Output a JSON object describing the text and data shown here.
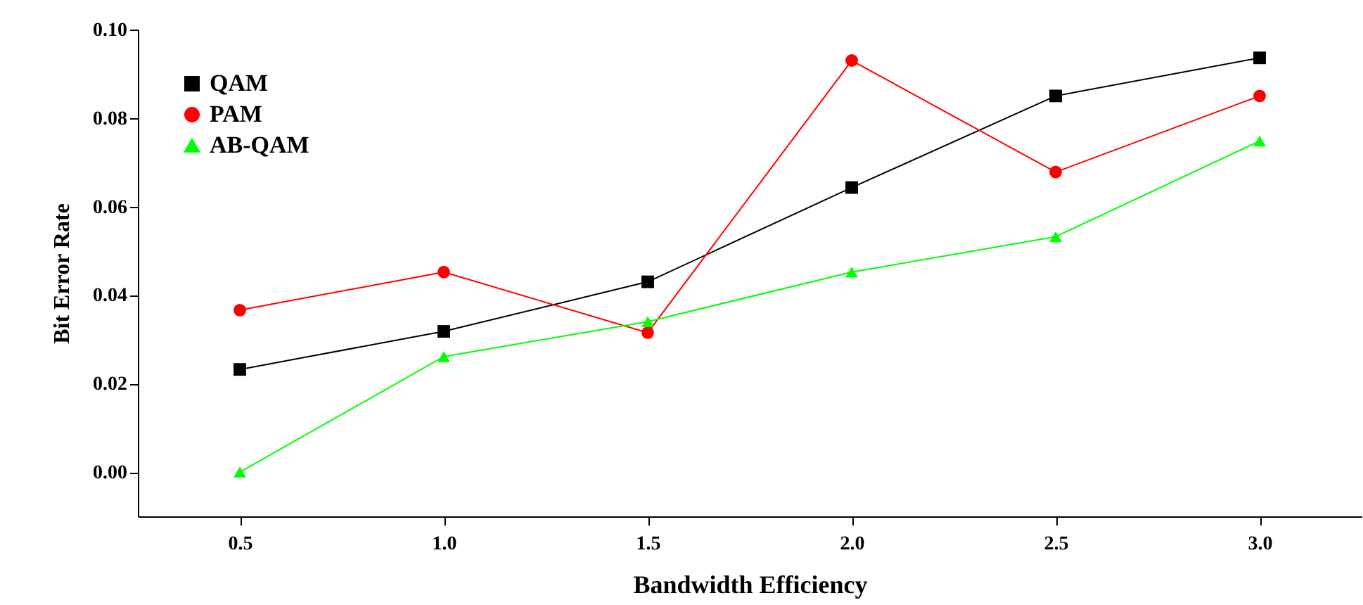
{
  "chart_data": {
    "type": "line",
    "xlabel": "Bandwidth Efficiency",
    "ylabel": "Bit Error Rate",
    "x": [
      0.5,
      1.0,
      1.5,
      2.0,
      2.5,
      3.0
    ],
    "xlim": [
      0.25,
      3.25
    ],
    "xticks": [
      {
        "value": 0.5,
        "label": "0.5"
      },
      {
        "value": 1.0,
        "label": "1.0"
      },
      {
        "value": 1.5,
        "label": "1.5"
      },
      {
        "value": 2.0,
        "label": "2.0"
      },
      {
        "value": 2.5,
        "label": "2.5"
      },
      {
        "value": 3.0,
        "label": "3.0"
      }
    ],
    "ylim": [
      -0.01,
      0.1
    ],
    "yticks": [
      {
        "value": 0,
        "label": "0.00"
      },
      {
        "value": 0.02,
        "label": "0.02"
      },
      {
        "value": 0.04,
        "label": "0.04"
      },
      {
        "value": 0.06,
        "label": "0.06"
      },
      {
        "value": 0.08,
        "label": "0.08"
      },
      {
        "value": 0.1,
        "label": "0.10"
      }
    ],
    "grid": false,
    "legend": "top left",
    "line_style": "solid",
    "series": [
      {
        "name": "QAM",
        "color": "#000000",
        "marker": "square",
        "values": [
          0.0232,
          0.0318,
          0.043,
          0.0643,
          0.085,
          0.0936
        ]
      },
      {
        "name": "PAM",
        "color": "#ff0000",
        "marker": "circle",
        "values": [
          0.0366,
          0.0452,
          0.0315,
          0.093,
          0.0678,
          0.085
        ]
      },
      {
        "name": "AB-QAM",
        "color": "#00ff00",
        "marker": "triangle",
        "values": [
          0,
          0.0261,
          0.034,
          0.0452,
          0.0532,
          0.0748
        ]
      }
    ]
  }
}
